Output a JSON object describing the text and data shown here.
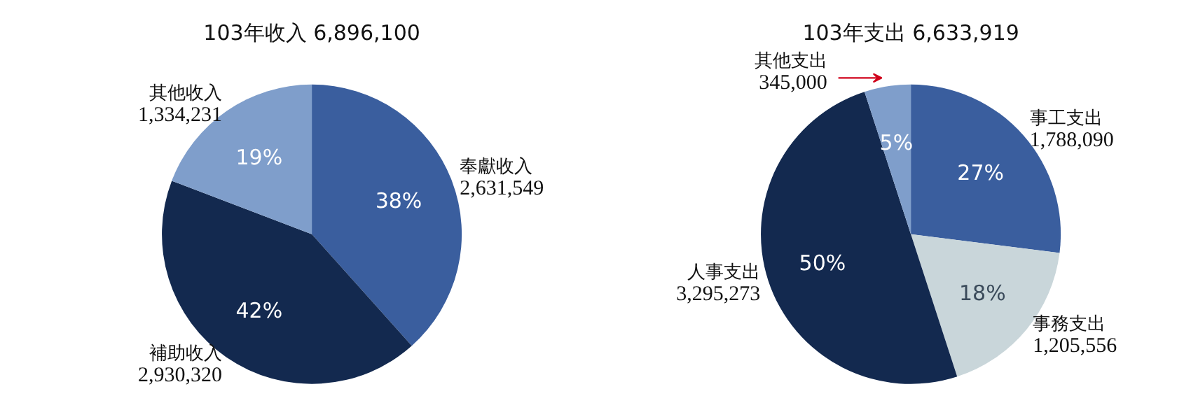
{
  "chart_data": [
    {
      "type": "pie",
      "title": "103年收入 6,896,100",
      "categories": [
        "奉獻收入\n2,631,549",
        "補助收入\n2,930,320",
        "其他收入\n1,334,231"
      ],
      "values": [
        38,
        42,
        19
      ],
      "colors": [
        "#3a5e9e",
        "#13294f",
        "#7f9ecb"
      ],
      "value_labels": [
        "38%",
        "42%",
        "19%"
      ]
    },
    {
      "type": "pie",
      "title": "103年支出 6,633,919",
      "categories": [
        "事工支出\n1,788,090",
        "事務支出\n1,205,556",
        "人事支出\n3,295,273",
        "其他支出\n345,000"
      ],
      "values": [
        27,
        18,
        50,
        5
      ],
      "colors": [
        "#3a5e9e",
        "#c9d6da",
        "#13294f",
        "#7f9ecb"
      ],
      "value_labels": [
        "27%",
        "18%",
        "50%",
        "5%"
      ]
    }
  ]
}
